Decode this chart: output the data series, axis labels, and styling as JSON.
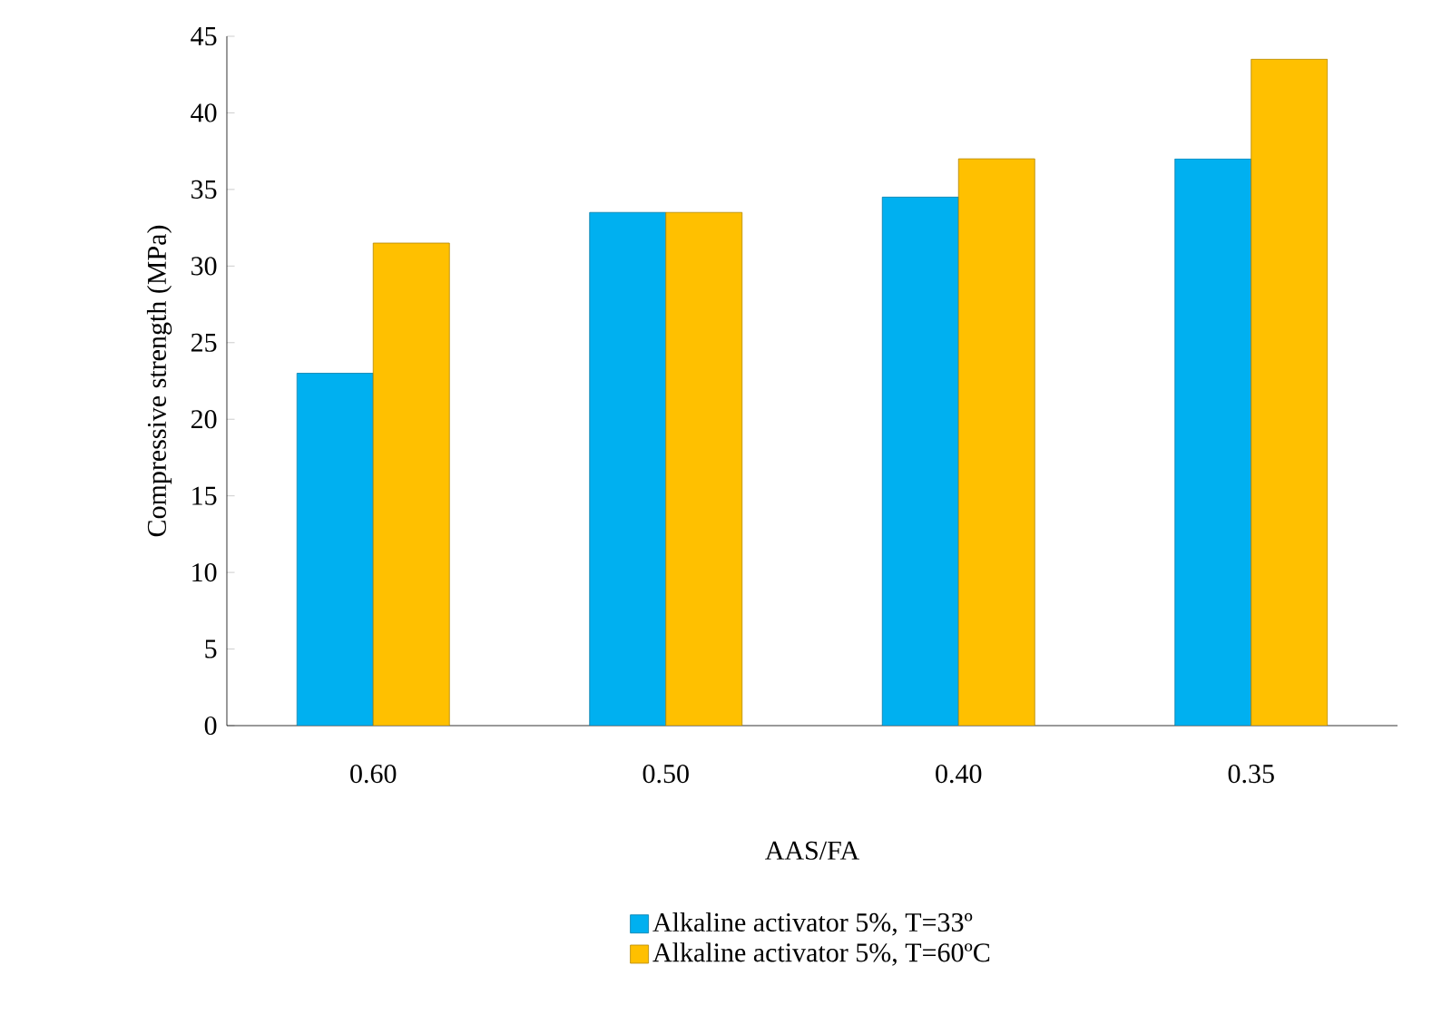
{
  "chart_data": {
    "type": "bar",
    "xlabel": "AAS/FA",
    "ylabel": "Compressive strength (MPa)",
    "categories": [
      "0.60",
      "0.50",
      "0.40",
      "0.35"
    ],
    "series": [
      {
        "name": "Alkaline activator 5%, T=33º",
        "color": "#00b0f0",
        "values": [
          23,
          33.5,
          34.5,
          37
        ]
      },
      {
        "name": "Alkaline activator 5%, T=60ºC",
        "color": "#ffc000",
        "values": [
          31.5,
          33.5,
          37,
          43.5
        ]
      }
    ],
    "ylim": [
      0,
      45
    ],
    "yticks": [
      0,
      5,
      10,
      15,
      20,
      25,
      30,
      35,
      40,
      45
    ],
    "grid": false,
    "legend": "bottom"
  }
}
